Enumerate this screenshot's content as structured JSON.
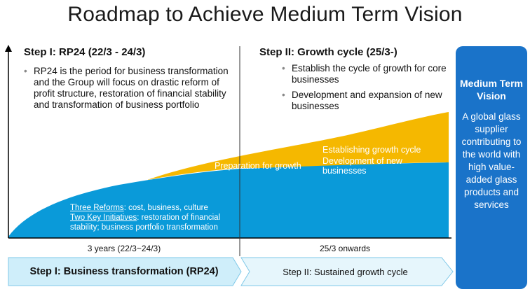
{
  "title": "Roadmap to Achieve Medium Term Vision",
  "step1": {
    "heading": "Step I: RP24 (22/3 - 24/3)",
    "bullets": [
      "RP24 is the period for business transformation and the Group will focus on drastic reform of profit structure, restoration of financial stability and transformation of business portfolio"
    ],
    "reforms_label": "Three Reforms",
    "reforms_text": ": cost, business, culture",
    "initiatives_label": "Two Key Initiatives",
    "initiatives_text": ": restoration of financial stability; business portfolio transformation",
    "period": "3 years (22/3~24/3)",
    "bar_label": "Step I: Business transformation (RP24)"
  },
  "step2": {
    "heading": "Step II: Growth cycle (25/3-)",
    "bullets": [
      "Establish the cycle of growth for core businesses",
      "Development and expansion of new businesses"
    ],
    "period": "25/3 onwards",
    "bar_label": "Step II: Sustained growth cycle"
  },
  "area_labels": {
    "preparation": "Preparation for growth",
    "establishing": "Establishing growth cycle",
    "development": "Development of new businesses"
  },
  "vision": {
    "title": "Medium Term Vision",
    "body": "A global glass supplier contributing to the world with high value-added glass products and services"
  },
  "colors": {
    "blue": "#0a9ad9",
    "gold": "#f5b800",
    "vision_bg": "#1a73c9",
    "chevron_step1": "#cfeefa",
    "chevron_step2": "#e6f6fc"
  }
}
